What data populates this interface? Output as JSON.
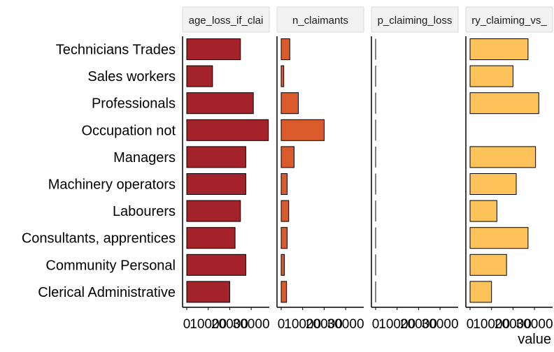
{
  "chart_data": {
    "type": "bar",
    "orientation": "horizontal",
    "categories": [
      "Technicians Trades",
      "Sales workers",
      "Professionals",
      "Occupation not",
      "Managers",
      "Machinery operators",
      "Labourers",
      "Consultants, apprentices",
      "Community Personal",
      "Clerical Administrative"
    ],
    "panels": [
      {
        "strip_label": "age_loss_if_clai",
        "color": "#A4232A",
        "xlim": [
          0,
          40000
        ],
        "tick_values": [
          0,
          10000,
          20000,
          30000
        ],
        "tick_labels": [
          "0",
          "10000",
          "20000",
          "30000"
        ],
        "values": [
          25000,
          12000,
          31000,
          38000,
          27500,
          27500,
          25000,
          22500,
          27500,
          20000
        ]
      },
      {
        "strip_label": "n_claimants",
        "color": "#D95B2C",
        "xlim": [
          0,
          40000
        ],
        "tick_values": [
          0,
          10000,
          20000,
          30000
        ],
        "tick_labels": [
          "0",
          "10000",
          "20000",
          "30000"
        ],
        "values": [
          4000,
          1200,
          8000,
          20000,
          6000,
          2800,
          3500,
          2800,
          1500,
          2500
        ]
      },
      {
        "strip_label": "p_claiming_loss",
        "color": "#E3963A",
        "xlim": [
          0,
          40000
        ],
        "tick_values": [
          0,
          10000,
          20000,
          30000
        ],
        "tick_labels": [
          "0",
          "10000",
          "20000",
          "30000"
        ],
        "values": [
          0.3,
          0.2,
          0.3,
          0.4,
          0.3,
          0.3,
          0.3,
          0.3,
          0.3,
          0.3
        ]
      },
      {
        "strip_label": "ry_claiming_vs_",
        "color": "#FDC35A",
        "xlim": [
          0,
          40000
        ],
        "tick_values": [
          0,
          10000,
          20000,
          30000
        ],
        "tick_labels": [
          "0",
          "10000",
          "20000",
          "30000"
        ],
        "values": [
          27000,
          20000,
          32000,
          0,
          30500,
          21500,
          12500,
          27000,
          17000,
          10000
        ]
      }
    ],
    "xlabel": "value",
    "ylabel": "",
    "legend": "none",
    "grid": false
  }
}
